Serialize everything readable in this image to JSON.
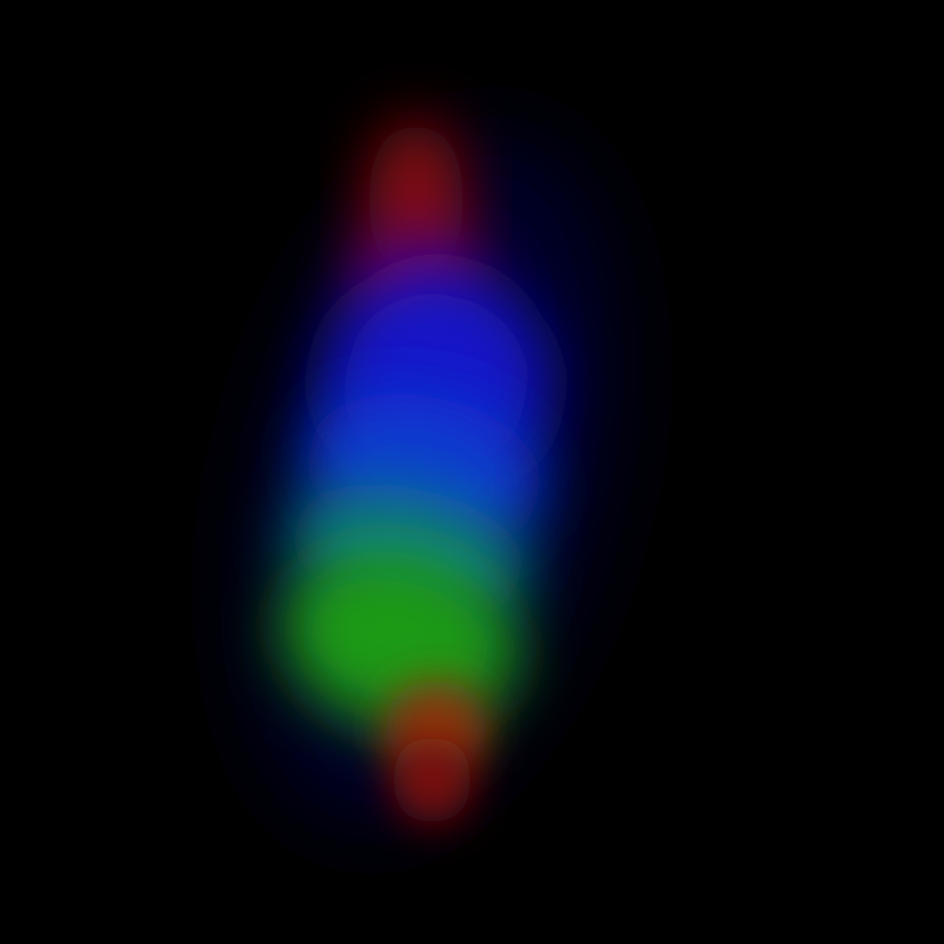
{
  "image": {
    "background_color": "#000000",
    "subject": "rgb-emission-blob",
    "palette": {
      "red": "#8a0a10",
      "magenta": "#6a0560",
      "blue": "#1414c8",
      "azure": "#0a3ad0",
      "teal": "#0a7a8a",
      "green": "#1e9a14",
      "orange": "#8a3a0a"
    }
  }
}
